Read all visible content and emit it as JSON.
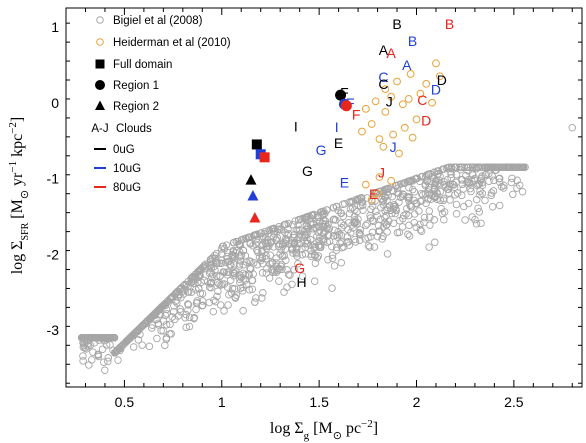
{
  "chart_data": {
    "type": "scatter",
    "xlabel_main": "log Σ",
    "xlabel_sub": "g",
    "xlabel_units": "[M",
    "xlabel_sun": "⊙",
    "xlabel_tail": " pc",
    "xlabel_exp": "−2",
    "xlabel_close": "]",
    "ylabel_main": "log Σ",
    "ylabel_sub": "SFR",
    "ylabel_units": "[M",
    "ylabel_sun": "⊙",
    "ylabel_tail1": " yr",
    "ylabel_exp1": "−1",
    "ylabel_tail2": " kpc",
    "ylabel_exp2": "−2",
    "ylabel_close": "]",
    "xlim": [
      0.2,
      2.85
    ],
    "ylim": [
      -3.75,
      1.25
    ],
    "x_ticks": [
      0.5,
      1,
      1.5,
      2,
      2.5
    ],
    "x_tick_labels": [
      "0.5",
      "1",
      "1.5",
      "2",
      "2.5"
    ],
    "y_ticks": [
      1,
      0,
      -1,
      -2,
      -3
    ],
    "y_tick_labels": [
      "1",
      "0",
      "-1",
      "-2",
      "-3"
    ],
    "colors": {
      "bigiel": "#a6a6a6",
      "heiderman": "#e8a33a",
      "b0": "#000000",
      "b10": "#1f3fd8",
      "b80": "#e8261c"
    },
    "legend": {
      "bigiel": "Bigiel et al (2008)",
      "heiderman": "Heiderman et al (2010)",
      "full_domain": "Full domain",
      "region1": "Region 1",
      "region2": "Region 2",
      "clouds_key": "A-J",
      "clouds": "Clouds",
      "b0": "0uG",
      "b10": "10uG",
      "b80": "80uG"
    },
    "bigiel_model": {
      "x_range": [
        0.28,
        2.56
      ],
      "count": 1400,
      "mean_fit_slope": 1.0,
      "mean_fit_intercept": -3.2,
      "outlier": [
        2.8,
        -0.33
      ]
    },
    "heiderman_points": [
      [
        2.1,
        0.52
      ],
      [
        2.12,
        0.35
      ],
      [
        1.97,
        0.38
      ],
      [
        2.05,
        0.25
      ],
      [
        1.9,
        0.28
      ],
      [
        1.84,
        0.18
      ],
      [
        2.02,
        0.12
      ],
      [
        1.96,
        0.05
      ],
      [
        1.87,
        0.08
      ],
      [
        1.93,
        -0.02
      ],
      [
        2.08,
        0.0
      ],
      [
        1.79,
        0.02
      ],
      [
        1.74,
        -0.08
      ],
      [
        1.84,
        -0.12
      ],
      [
        1.77,
        -0.28
      ],
      [
        1.72,
        -0.38
      ],
      [
        1.88,
        -0.42
      ],
      [
        1.81,
        -0.48
      ],
      [
        1.98,
        -0.46
      ],
      [
        1.83,
        -0.58
      ],
      [
        1.91,
        -0.67
      ],
      [
        1.81,
        -0.98
      ],
      [
        1.87,
        -1.03
      ],
      [
        1.74,
        -1.08
      ],
      [
        1.77,
        -1.28
      ],
      [
        1.8,
        -1.2
      ],
      [
        1.94,
        -0.33
      ],
      [
        2.0,
        -0.22
      ]
    ],
    "full_domain": [
      {
        "field": "0uG",
        "x": 1.18,
        "y": -0.55
      },
      {
        "field": "10uG",
        "x": 1.2,
        "y": -0.68
      },
      {
        "field": "80uG",
        "x": 1.22,
        "y": -0.72
      }
    ],
    "region1": [
      {
        "field": "0uG",
        "x": 1.61,
        "y": 0.1
      },
      {
        "field": "10uG",
        "x": 1.63,
        "y": -0.02
      },
      {
        "field": "80uG",
        "x": 1.64,
        "y": -0.04
      }
    ],
    "region2": [
      {
        "field": "0uG",
        "x": 1.15,
        "y": -1.02
      },
      {
        "field": "10uG",
        "x": 1.16,
        "y": -1.23
      },
      {
        "field": "80uG",
        "x": 1.17,
        "y": -1.52
      }
    ],
    "clouds": [
      {
        "label": "B",
        "field": "0uG",
        "x": 1.9,
        "y": 1.02
      },
      {
        "label": "B",
        "field": "80uG",
        "x": 2.17,
        "y": 1.02
      },
      {
        "label": "B",
        "field": "10uG",
        "x": 1.98,
        "y": 0.8
      },
      {
        "label": "A",
        "field": "0uG",
        "x": 1.83,
        "y": 0.68
      },
      {
        "label": "A",
        "field": "80uG",
        "x": 1.87,
        "y": 0.64
      },
      {
        "label": "A",
        "field": "10uG",
        "x": 1.95,
        "y": 0.48
      },
      {
        "label": "C",
        "field": "10uG",
        "x": 1.83,
        "y": 0.32
      },
      {
        "label": "C",
        "field": "0uG",
        "x": 1.83,
        "y": 0.23
      },
      {
        "label": "C",
        "field": "80uG",
        "x": 2.03,
        "y": 0.02
      },
      {
        "label": "D",
        "field": "0uG",
        "x": 2.13,
        "y": 0.28
      },
      {
        "label": "D",
        "field": "10uG",
        "x": 2.1,
        "y": 0.16
      },
      {
        "label": "D",
        "field": "80uG",
        "x": 2.05,
        "y": -0.25
      },
      {
        "label": "J",
        "field": "0uG",
        "x": 1.86,
        "y": 0.0
      },
      {
        "label": "J",
        "field": "10uG",
        "x": 1.88,
        "y": -0.6
      },
      {
        "label": "J",
        "field": "80uG",
        "x": 1.82,
        "y": -0.94
      },
      {
        "label": "F",
        "field": "0uG",
        "x": 1.63,
        "y": 0.12
      },
      {
        "label": "F",
        "field": "10uG",
        "x": 1.66,
        "y": -0.02
      },
      {
        "label": "F",
        "field": "80uG",
        "x": 1.69,
        "y": -0.17
      },
      {
        "label": "I",
        "field": "0uG",
        "x": 1.38,
        "y": -0.33
      },
      {
        "label": "I",
        "field": "10uG",
        "x": 1.59,
        "y": -0.34
      },
      {
        "label": "E",
        "field": "0uG",
        "x": 1.6,
        "y": -0.55
      },
      {
        "label": "E",
        "field": "10uG",
        "x": 1.63,
        "y": -1.07
      },
      {
        "label": "E",
        "field": "80uG",
        "x": 1.78,
        "y": -1.22
      },
      {
        "label": "G",
        "field": "10uG",
        "x": 1.51,
        "y": -0.64
      },
      {
        "label": "G",
        "field": "0uG",
        "x": 1.44,
        "y": -0.92
      },
      {
        "label": "G",
        "field": "80uG",
        "x": 1.4,
        "y": -2.2
      },
      {
        "label": "H",
        "field": "0uG",
        "x": 1.41,
        "y": -2.38
      }
    ]
  }
}
